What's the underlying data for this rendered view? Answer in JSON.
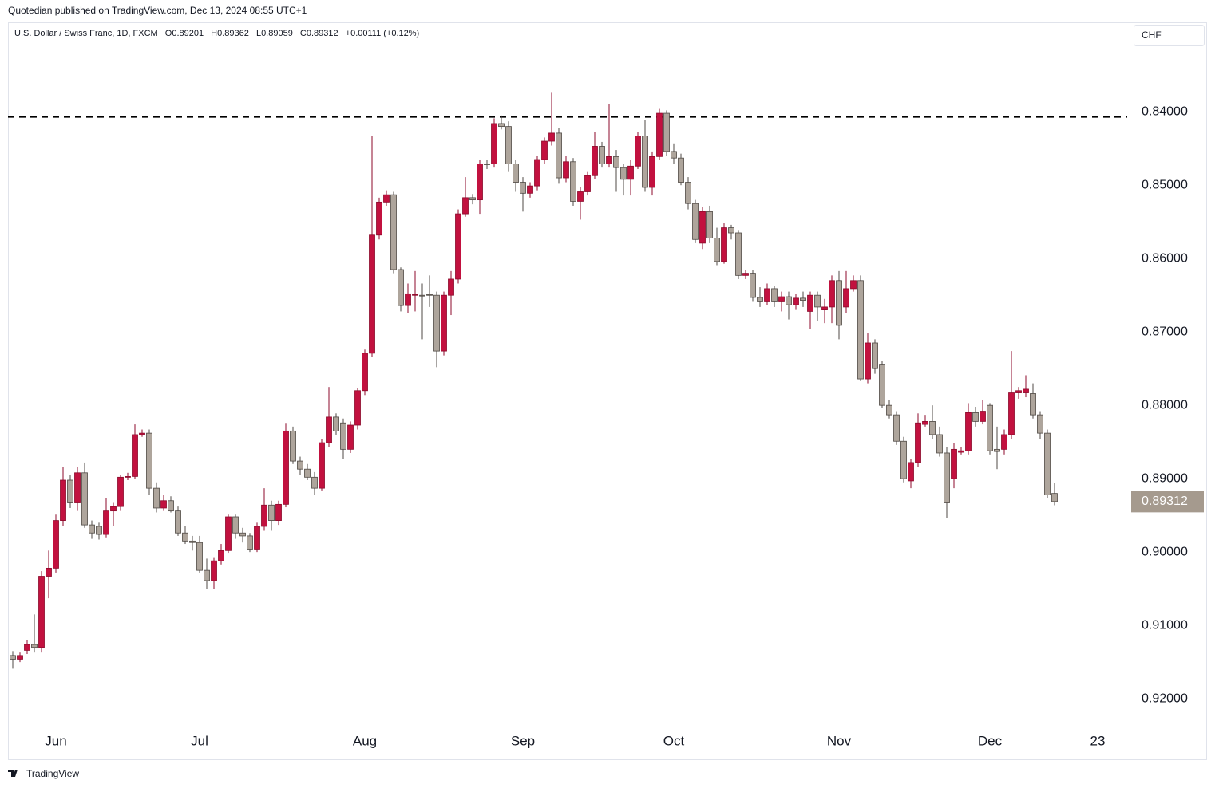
{
  "header": "Quotedian published on TradingView.com, Dec 13, 2024 08:55 UTC+1",
  "footer": "TradingView",
  "currency": "CHF",
  "chart_data": {
    "type": "candlestick",
    "symbol": "U.S. Dollar / Swiss Franc, 1D, FXCM",
    "ohlc_labels": [
      "O",
      "H",
      "L",
      "C"
    ],
    "change": "+0.00111 (+0.12%)",
    "up_color": "#aea59c",
    "up_border": "#4f4944",
    "down_color": "#c2113f",
    "down_border": "#8c0a2b",
    "last_price_color": "#a59a8e",
    "hline_value": 0.8407,
    "xlim": [
      -0.667,
      155.111
    ],
    "xticks": [
      {
        "value": 6,
        "label": "Jun"
      },
      {
        "value": 26,
        "label": "Jul"
      },
      {
        "value": 49,
        "label": "Aug"
      },
      {
        "value": 71,
        "label": "Sep"
      },
      {
        "value": 92,
        "label": "Oct"
      },
      {
        "value": 115,
        "label": "Nov"
      },
      {
        "value": 136,
        "label": "Dec"
      },
      {
        "value": 151,
        "label": "23"
      }
    ],
    "ylim": [
      0.9239,
      0.8278
    ],
    "yticks": [
      {
        "value": 0.84,
        "label": "0.84000"
      },
      {
        "value": 0.85,
        "label": "0.85000"
      },
      {
        "value": 0.86,
        "label": "0.86000"
      },
      {
        "value": 0.87,
        "label": "0.87000"
      },
      {
        "value": 0.88,
        "label": "0.88000"
      },
      {
        "value": 0.89,
        "label": "0.89000"
      },
      {
        "value": 0.9,
        "label": "0.90000"
      },
      {
        "value": 0.91,
        "label": "0.91000"
      },
      {
        "value": 0.92,
        "label": "0.92000"
      }
    ],
    "grid": false,
    "candles": {
      "open": [
        0.9141,
        0.9146,
        0.9134,
        0.9126,
        0.913,
        0.9033,
        0.9022,
        0.8957,
        0.8902,
        0.8933,
        0.8892,
        0.8963,
        0.8965,
        0.8976,
        0.8944,
        0.8938,
        0.8898,
        0.8897,
        0.884,
        0.8838,
        0.8913,
        0.894,
        0.893,
        0.8944,
        0.8974,
        0.8985,
        0.8987,
        0.9025,
        0.9039,
        0.9012,
        0.8998,
        0.8952,
        0.8974,
        0.8978,
        0.8996,
        0.8965,
        0.8936,
        0.8957,
        0.8935,
        0.8835,
        0.8876,
        0.8887,
        0.8898,
        0.8913,
        0.8851,
        0.8816,
        0.8824,
        0.886,
        0.8827,
        0.878,
        0.8729,
        0.8568,
        0.8523,
        0.8513,
        0.8615,
        0.8664,
        0.865,
        0.865,
        0.8649,
        0.865,
        0.8726,
        0.865,
        0.8628,
        0.8539,
        0.8517,
        0.852,
        0.8471,
        0.8471,
        0.8416,
        0.842,
        0.8471,
        0.8496,
        0.8511,
        0.8501,
        0.8465,
        0.844,
        0.8429,
        0.849,
        0.8468,
        0.8522,
        0.8509,
        0.8487,
        0.8447,
        0.8471,
        0.8461,
        0.8476,
        0.8492,
        0.8474,
        0.8433,
        0.8503,
        0.8461,
        0.8402,
        0.8454,
        0.8463,
        0.8496,
        0.8525,
        0.8579,
        0.8536,
        0.8572,
        0.8604,
        0.8558,
        0.8565,
        0.8623,
        0.862,
        0.8653,
        0.8659,
        0.8641,
        0.8659,
        0.8652,
        0.8663,
        0.8654,
        0.8672,
        0.865,
        0.867,
        0.8666,
        0.863,
        0.8666,
        0.8641,
        0.863,
        0.8764,
        0.8715,
        0.8745,
        0.88,
        0.8813,
        0.8849,
        0.8903,
        0.8878,
        0.8826,
        0.8822,
        0.884,
        0.8865,
        0.89,
        0.8864,
        0.8862,
        0.881,
        0.8822,
        0.88,
        0.886,
        0.886,
        0.884,
        0.8783,
        0.8783,
        0.8784,
        0.8813,
        0.8838,
        0.89201
      ],
      "high": [
        0.9159,
        0.915,
        0.9139,
        0.9137,
        0.9137,
        0.9063,
        0.9028,
        0.8965,
        0.894,
        0.8944,
        0.8967,
        0.8982,
        0.8983,
        0.898,
        0.8965,
        0.8944,
        0.8902,
        0.89,
        0.8843,
        0.8922,
        0.8946,
        0.8944,
        0.8946,
        0.8978,
        0.8989,
        0.8998,
        0.9028,
        0.905,
        0.905,
        0.9017,
        0.9001,
        0.8982,
        0.8987,
        0.9,
        0.9,
        0.8971,
        0.8971,
        0.8963,
        0.8939,
        0.888,
        0.8895,
        0.8902,
        0.8922,
        0.8916,
        0.8857,
        0.884,
        0.8873,
        0.8865,
        0.8833,
        0.8786,
        0.8734,
        0.8574,
        0.8528,
        0.862,
        0.8672,
        0.8674,
        0.8672,
        0.871,
        0.8666,
        0.8748,
        0.8732,
        0.8677,
        0.8634,
        0.8543,
        0.8526,
        0.8539,
        0.8478,
        0.8476,
        0.8424,
        0.8482,
        0.8509,
        0.8536,
        0.8517,
        0.8507,
        0.8471,
        0.8446,
        0.8498,
        0.8496,
        0.8528,
        0.8547,
        0.8514,
        0.8492,
        0.8476,
        0.8476,
        0.8509,
        0.8514,
        0.8514,
        0.8478,
        0.8509,
        0.8514,
        0.8465,
        0.846,
        0.8471,
        0.85,
        0.8533,
        0.8579,
        0.8587,
        0.8579,
        0.8609,
        0.8607,
        0.8574,
        0.8628,
        0.8628,
        0.8659,
        0.8666,
        0.8663,
        0.8666,
        0.8672,
        0.8683,
        0.867,
        0.8666,
        0.8696,
        0.8685,
        0.8688,
        0.8688,
        0.871,
        0.8674,
        0.8645,
        0.8767,
        0.877,
        0.8757,
        0.8804,
        0.8818,
        0.8854,
        0.8905,
        0.8913,
        0.8884,
        0.8829,
        0.8846,
        0.887,
        0.8954,
        0.8913,
        0.8867,
        0.8867,
        0.8829,
        0.8826,
        0.8867,
        0.8887,
        0.8867,
        0.8846,
        0.8791,
        0.8789,
        0.8818,
        0.8846,
        0.8927,
        0.89362
      ],
      "low": [
        0.9135,
        0.9137,
        0.912,
        0.9085,
        0.9026,
        0.8998,
        0.8949,
        0.8884,
        0.8895,
        0.8884,
        0.8878,
        0.8957,
        0.896,
        0.8927,
        0.8933,
        0.8895,
        0.8892,
        0.8826,
        0.8833,
        0.8833,
        0.8905,
        0.8922,
        0.8924,
        0.8938,
        0.8965,
        0.8978,
        0.8978,
        0.9009,
        0.9007,
        0.8989,
        0.8949,
        0.8949,
        0.8967,
        0.8974,
        0.896,
        0.8913,
        0.893,
        0.893,
        0.8824,
        0.8829,
        0.887,
        0.888,
        0.8891,
        0.8846,
        0.8775,
        0.8811,
        0.8818,
        0.8822,
        0.8776,
        0.8724,
        0.8433,
        0.8517,
        0.8507,
        0.8509,
        0.8612,
        0.8634,
        0.8617,
        0.8634,
        0.8623,
        0.8645,
        0.8645,
        0.8617,
        0.8533,
        0.8489,
        0.8512,
        0.8465,
        0.8465,
        0.8409,
        0.8405,
        0.8413,
        0.8465,
        0.8489,
        0.8496,
        0.846,
        0.8435,
        0.8373,
        0.8422,
        0.846,
        0.8463,
        0.8503,
        0.8482,
        0.8427,
        0.8441,
        0.8389,
        0.8452,
        0.8471,
        0.8465,
        0.8427,
        0.8411,
        0.8454,
        0.8396,
        0.8398,
        0.8443,
        0.8457,
        0.8489,
        0.852,
        0.853,
        0.8528,
        0.8558,
        0.8552,
        0.8554,
        0.8561,
        0.8615,
        0.8615,
        0.8639,
        0.8634,
        0.8637,
        0.8645,
        0.8645,
        0.8648,
        0.8645,
        0.8645,
        0.8645,
        0.8655,
        0.8623,
        0.8617,
        0.8617,
        0.8623,
        0.8623,
        0.8702,
        0.871,
        0.8739,
        0.8793,
        0.8808,
        0.8843,
        0.8873,
        0.8811,
        0.8813,
        0.88,
        0.8829,
        0.8857,
        0.8851,
        0.8857,
        0.8797,
        0.8802,
        0.8793,
        0.8797,
        0.8829,
        0.8833,
        0.8726,
        0.8775,
        0.8759,
        0.877,
        0.8808,
        0.8833,
        0.89059
      ],
      "close": [
        0.9146,
        0.9141,
        0.9126,
        0.913,
        0.9033,
        0.9022,
        0.8957,
        0.8902,
        0.8933,
        0.8892,
        0.8963,
        0.8974,
        0.8976,
        0.8944,
        0.8938,
        0.8898,
        0.8897,
        0.884,
        0.8838,
        0.8913,
        0.894,
        0.893,
        0.8944,
        0.8974,
        0.8985,
        0.8987,
        0.9025,
        0.9039,
        0.9012,
        0.8998,
        0.8952,
        0.8974,
        0.8978,
        0.8996,
        0.8965,
        0.8936,
        0.8957,
        0.8935,
        0.8835,
        0.8876,
        0.8887,
        0.8898,
        0.8913,
        0.8851,
        0.8816,
        0.8835,
        0.886,
        0.8827,
        0.878,
        0.8729,
        0.8568,
        0.8523,
        0.8513,
        0.8615,
        0.8664,
        0.8648,
        0.8649,
        0.8651,
        0.865,
        0.8726,
        0.865,
        0.8628,
        0.8539,
        0.8517,
        0.852,
        0.8471,
        0.8472,
        0.8416,
        0.842,
        0.8471,
        0.8496,
        0.8511,
        0.8501,
        0.8465,
        0.844,
        0.8429,
        0.849,
        0.8468,
        0.8522,
        0.8509,
        0.8487,
        0.8447,
        0.8471,
        0.8461,
        0.8476,
        0.8492,
        0.8474,
        0.8433,
        0.8503,
        0.8461,
        0.8402,
        0.8454,
        0.8463,
        0.8496,
        0.8525,
        0.8574,
        0.8536,
        0.8572,
        0.8604,
        0.8558,
        0.8565,
        0.8623,
        0.862,
        0.8653,
        0.8659,
        0.8641,
        0.8659,
        0.8652,
        0.8663,
        0.8654,
        0.8657,
        0.865,
        0.8666,
        0.8666,
        0.863,
        0.8691,
        0.8641,
        0.863,
        0.8764,
        0.8715,
        0.875,
        0.88,
        0.8813,
        0.8849,
        0.89,
        0.8878,
        0.8824,
        0.8822,
        0.884,
        0.8865,
        0.8933,
        0.886,
        0.8862,
        0.881,
        0.8822,
        0.8808,
        0.8862,
        0.8863,
        0.884,
        0.8783,
        0.878,
        0.8778,
        0.8813,
        0.8838,
        0.8922,
        0.89312
      ]
    }
  }
}
